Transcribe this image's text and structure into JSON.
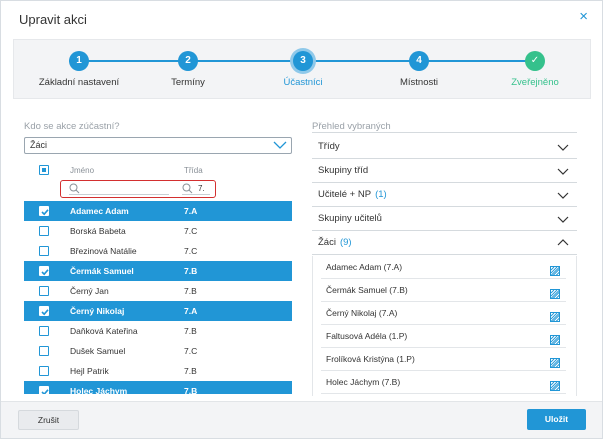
{
  "dialog": {
    "title": "Upravit akci",
    "close": "×"
  },
  "stepper": {
    "steps": [
      {
        "number": "1",
        "label": "Základní nastavení",
        "state": "done-blue"
      },
      {
        "number": "2",
        "label": "Termíny",
        "state": "done-blue"
      },
      {
        "number": "3",
        "label": "Účastníci",
        "state": "active"
      },
      {
        "number": "4",
        "label": "Místnosti",
        "state": "pending"
      },
      {
        "number": "✓",
        "label": "Zveřejněno",
        "state": "done"
      }
    ]
  },
  "left": {
    "question": "Kdo se akce zúčastní?",
    "select_value": "Žáci",
    "col_name": "Jméno",
    "col_class": "Třída",
    "filter_name": "",
    "filter_class": "7.",
    "rows": [
      {
        "name": "Adamec Adam",
        "class": "7.A",
        "selected": true
      },
      {
        "name": "Borská Babeta",
        "class": "7.C",
        "selected": false
      },
      {
        "name": "Březinová Natálie",
        "class": "7.C",
        "selected": false
      },
      {
        "name": "Čermák Samuel",
        "class": "7.B",
        "selected": true
      },
      {
        "name": "Černý Jan",
        "class": "7.B",
        "selected": false
      },
      {
        "name": "Černý Nikolaj",
        "class": "7.A",
        "selected": true
      },
      {
        "name": "Daňková Kateřina",
        "class": "7.B",
        "selected": false
      },
      {
        "name": "Dušek Samuel",
        "class": "7.C",
        "selected": false
      },
      {
        "name": "Hejl Patrik",
        "class": "7.B",
        "selected": false
      },
      {
        "name": "Holec Jáchym",
        "class": "7.B",
        "selected": true
      }
    ]
  },
  "right": {
    "title": "Přehled vybraných",
    "sections": [
      {
        "label": "Třídy",
        "count": ""
      },
      {
        "label": "Skupiny tříd",
        "count": ""
      },
      {
        "label": "Učitelé + NP",
        "count": "(1)"
      },
      {
        "label": "Skupiny učitelů",
        "count": ""
      },
      {
        "label": "Žáci",
        "count": "(9)"
      }
    ],
    "students": [
      "Adamec Adam (7.A)",
      "Čermák Samuel (7.B)",
      "Černý Nikolaj (7.A)",
      "Faltusová Adéla (1.P)",
      "Frolíková Kristýna (1.P)",
      "Holec Jáchym (7.B)"
    ]
  },
  "footer": {
    "cancel": "Zrušit",
    "save": "Uložit"
  },
  "colors": {
    "accent": "#2196d6",
    "success": "#35c18c",
    "highlight": "#d32f2f"
  }
}
